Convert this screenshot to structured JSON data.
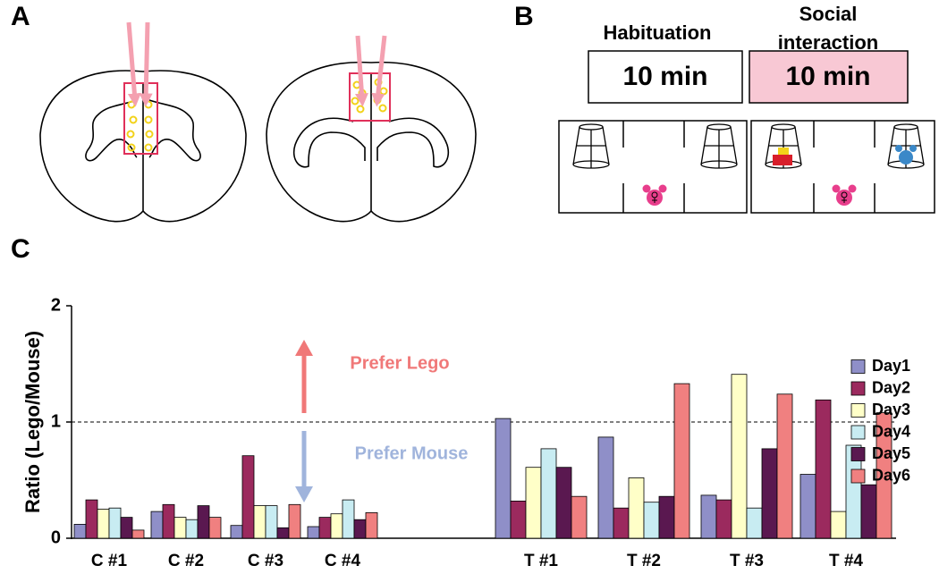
{
  "panel_labels": [
    "A",
    "B",
    "C"
  ],
  "protocol": {
    "phases": [
      {
        "title": "Habituation",
        "duration": "10 min"
      },
      {
        "title": "Social interaction",
        "duration": "10 min"
      }
    ]
  },
  "chart_data": {
    "type": "bar",
    "ylabel": "Ratio (Lego/Mouse)",
    "categories": [
      "C #1",
      "C #2",
      "C #3",
      "C #4",
      null,
      "T #1",
      "T #2",
      "T #3",
      "T #4"
    ],
    "series": [
      {
        "name": "Day1",
        "color": "#8f8fc8",
        "values": [
          0.12,
          0.23,
          0.11,
          0.1,
          null,
          1.03,
          0.87,
          0.37,
          0.55
        ]
      },
      {
        "name": "Day2",
        "color": "#9b2a5e",
        "values": [
          0.33,
          0.29,
          0.71,
          0.18,
          null,
          0.32,
          0.26,
          0.33,
          1.19
        ]
      },
      {
        "name": "Day3",
        "color": "#ffffc8",
        "values": [
          0.25,
          0.18,
          0.28,
          0.21,
          null,
          0.61,
          0.52,
          1.41,
          0.23
        ]
      },
      {
        "name": "Day4",
        "color": "#c8ecf2",
        "values": [
          0.26,
          0.16,
          0.28,
          0.33,
          null,
          0.77,
          0.31,
          0.26,
          0.8
        ]
      },
      {
        "name": "Day5",
        "color": "#5a1850",
        "values": [
          0.18,
          0.28,
          0.09,
          0.16,
          null,
          0.61,
          0.36,
          0.77,
          0.46
        ]
      },
      {
        "name": "Day6",
        "color": "#f08080",
        "values": [
          0.07,
          0.18,
          0.29,
          0.22,
          null,
          0.36,
          1.33,
          1.24,
          1.08
        ]
      }
    ],
    "ylim": [
      0,
      2
    ],
    "yticks": [
      0,
      1,
      2
    ],
    "reference_line": 1,
    "annotations": [
      {
        "text": "Prefer Lego",
        "color": "#f07878"
      },
      {
        "text": "Prefer Mouse",
        "color": "#a0b4dc"
      }
    ],
    "legend": "right"
  }
}
